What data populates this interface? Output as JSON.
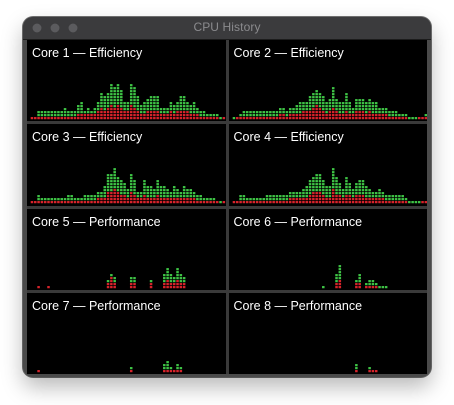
{
  "window": {
    "title": "CPU History",
    "colors": {
      "user": "#3fc646",
      "system": "#d9232b",
      "background": "#000000"
    }
  },
  "cores": [
    {
      "label": "Core 1 — Efficiency",
      "user": [
        0,
        1,
        1,
        3,
        3,
        3,
        3,
        3,
        3,
        3,
        3,
        4,
        3,
        3,
        3,
        5,
        6,
        3,
        4,
        3,
        4,
        6,
        9,
        8,
        9,
        12,
        11,
        12,
        10,
        6,
        6,
        12,
        11,
        8,
        5,
        6,
        7,
        8,
        8,
        8,
        4,
        4,
        4,
        6,
        5,
        6,
        8,
        8,
        6,
        5,
        6,
        4,
        3,
        3,
        2,
        2,
        2,
        2,
        1,
        1
      ],
      "system": [
        0,
        1,
        1,
        1,
        1,
        1,
        1,
        1,
        1,
        1,
        1,
        1,
        1,
        1,
        1,
        2,
        2,
        2,
        2,
        2,
        2,
        3,
        4,
        3,
        4,
        5,
        4,
        5,
        4,
        3,
        3,
        5,
        4,
        3,
        2,
        2,
        3,
        3,
        3,
        3,
        2,
        2,
        2,
        3,
        2,
        3,
        3,
        3,
        3,
        2,
        2,
        2,
        1,
        1,
        1,
        1,
        1,
        1,
        0,
        1
      ]
    },
    {
      "label": "Core 2 — Efficiency",
      "user": [
        0,
        1,
        1,
        2,
        3,
        3,
        3,
        3,
        3,
        3,
        3,
        3,
        3,
        3,
        3,
        4,
        4,
        3,
        4,
        4,
        5,
        6,
        6,
        6,
        8,
        9,
        10,
        9,
        8,
        6,
        7,
        11,
        7,
        6,
        6,
        9,
        6,
        4,
        7,
        7,
        7,
        6,
        7,
        6,
        6,
        4,
        4,
        4,
        3,
        3,
        3,
        2,
        2,
        2,
        1,
        1,
        1,
        1,
        1,
        2
      ],
      "system": [
        0,
        0,
        1,
        1,
        1,
        1,
        1,
        1,
        1,
        1,
        1,
        1,
        1,
        1,
        1,
        2,
        2,
        1,
        2,
        2,
        2,
        2,
        3,
        3,
        3,
        4,
        5,
        4,
        3,
        2,
        3,
        4,
        3,
        2,
        2,
        3,
        2,
        2,
        3,
        3,
        3,
        2,
        3,
        2,
        2,
        2,
        2,
        2,
        1,
        1,
        1,
        1,
        1,
        1,
        0,
        0,
        0,
        1,
        1,
        1
      ]
    },
    {
      "label": "Core 3 — Efficiency",
      "user": [
        0,
        1,
        1,
        3,
        2,
        2,
        2,
        2,
        2,
        2,
        2,
        2,
        3,
        3,
        2,
        2,
        2,
        3,
        3,
        3,
        3,
        4,
        4,
        6,
        10,
        10,
        12,
        9,
        8,
        7,
        5,
        10,
        8,
        4,
        4,
        8,
        6,
        6,
        5,
        8,
        6,
        6,
        5,
        4,
        6,
        5,
        4,
        6,
        5,
        5,
        4,
        3,
        3,
        2,
        2,
        2,
        2,
        1,
        1,
        1
      ],
      "system": [
        0,
        1,
        1,
        1,
        1,
        1,
        1,
        1,
        1,
        1,
        1,
        1,
        1,
        1,
        1,
        1,
        1,
        1,
        1,
        1,
        1,
        2,
        2,
        2,
        4,
        4,
        5,
        4,
        3,
        3,
        2,
        4,
        3,
        2,
        2,
        3,
        2,
        2,
        2,
        3,
        2,
        2,
        2,
        2,
        2,
        2,
        2,
        2,
        2,
        2,
        2,
        1,
        1,
        1,
        1,
        1,
        1,
        1,
        0,
        1
      ]
    },
    {
      "label": "Core 4 — Efficiency",
      "user": [
        0,
        1,
        1,
        3,
        3,
        2,
        2,
        2,
        2,
        2,
        2,
        3,
        3,
        3,
        3,
        3,
        3,
        3,
        4,
        4,
        4,
        4,
        5,
        6,
        8,
        9,
        10,
        10,
        8,
        6,
        6,
        12,
        9,
        7,
        5,
        9,
        7,
        5,
        7,
        8,
        8,
        6,
        5,
        4,
        4,
        5,
        4,
        3,
        3,
        3,
        3,
        3,
        3,
        2,
        1,
        1,
        1,
        1,
        1,
        1
      ],
      "system": [
        0,
        1,
        1,
        1,
        1,
        1,
        1,
        1,
        1,
        1,
        1,
        1,
        1,
        1,
        1,
        1,
        1,
        1,
        2,
        2,
        2,
        2,
        2,
        2,
        3,
        4,
        4,
        4,
        3,
        2,
        2,
        5,
        3,
        3,
        2,
        3,
        3,
        2,
        3,
        3,
        3,
        2,
        2,
        2,
        2,
        2,
        2,
        1,
        1,
        1,
        1,
        1,
        1,
        1,
        0,
        0,
        0,
        0,
        1,
        1
      ]
    },
    {
      "label": "Core 5 — Performance",
      "user": [
        0,
        0,
        0,
        1,
        0,
        0,
        1,
        0,
        0,
        0,
        0,
        0,
        0,
        0,
        0,
        0,
        0,
        0,
        0,
        0,
        0,
        0,
        0,
        0,
        3,
        5,
        4,
        0,
        0,
        0,
        0,
        4,
        4,
        0,
        0,
        0,
        0,
        3,
        0,
        0,
        0,
        5,
        7,
        5,
        4,
        7,
        5,
        4,
        0,
        0,
        0,
        0,
        0,
        0,
        0,
        0,
        0,
        0,
        0,
        0
      ],
      "system": [
        0,
        0,
        0,
        1,
        0,
        0,
        1,
        0,
        0,
        0,
        0,
        0,
        0,
        0,
        0,
        0,
        0,
        0,
        0,
        0,
        0,
        0,
        0,
        0,
        2,
        4,
        2,
        0,
        0,
        0,
        0,
        2,
        2,
        0,
        0,
        0,
        0,
        2,
        0,
        0,
        0,
        2,
        3,
        2,
        2,
        3,
        2,
        2,
        0,
        0,
        0,
        0,
        0,
        0,
        0,
        0,
        0,
        0,
        0,
        0
      ]
    },
    {
      "label": "Core 6 — Performance",
      "user": [
        0,
        0,
        0,
        0,
        0,
        0,
        0,
        0,
        0,
        0,
        0,
        0,
        0,
        0,
        0,
        0,
        0,
        0,
        0,
        0,
        0,
        0,
        0,
        0,
        0,
        0,
        0,
        0,
        1,
        0,
        0,
        0,
        5,
        8,
        0,
        0,
        0,
        0,
        3,
        5,
        0,
        2,
        3,
        3,
        2,
        1,
        1,
        1,
        0,
        0,
        0,
        0,
        0,
        0,
        0,
        0,
        0,
        0,
        0,
        0
      ],
      "system": [
        0,
        0,
        0,
        0,
        0,
        0,
        0,
        0,
        0,
        0,
        0,
        0,
        0,
        0,
        0,
        0,
        0,
        0,
        0,
        0,
        0,
        0,
        0,
        0,
        0,
        0,
        0,
        0,
        0,
        0,
        0,
        0,
        2,
        3,
        0,
        0,
        0,
        0,
        2,
        2,
        0,
        1,
        1,
        1,
        1,
        0,
        0,
        0,
        0,
        0,
        0,
        0,
        0,
        0,
        0,
        0,
        0,
        0,
        0,
        0
      ]
    },
    {
      "label": "Core 7 — Performance",
      "user": [
        0,
        0,
        0,
        1,
        0,
        0,
        0,
        0,
        0,
        0,
        0,
        0,
        0,
        0,
        0,
        0,
        0,
        0,
        0,
        0,
        0,
        0,
        0,
        0,
        0,
        0,
        0,
        0,
        0,
        0,
        0,
        2,
        0,
        0,
        0,
        0,
        0,
        0,
        0,
        0,
        0,
        3,
        4,
        2,
        1,
        3,
        2,
        0,
        0,
        0,
        0,
        0,
        0,
        0,
        0,
        0,
        0,
        0,
        0,
        0
      ],
      "system": [
        0,
        0,
        0,
        1,
        0,
        0,
        0,
        0,
        0,
        0,
        0,
        0,
        0,
        0,
        0,
        0,
        0,
        0,
        0,
        0,
        0,
        0,
        0,
        0,
        0,
        0,
        0,
        0,
        0,
        0,
        0,
        1,
        0,
        0,
        0,
        0,
        0,
        0,
        0,
        0,
        0,
        1,
        1,
        1,
        1,
        1,
        1,
        0,
        0,
        0,
        0,
        0,
        0,
        0,
        0,
        0,
        0,
        0,
        0,
        0
      ]
    },
    {
      "label": "Core 8 — Performance",
      "user": [
        0,
        0,
        0,
        0,
        0,
        0,
        0,
        0,
        0,
        0,
        0,
        0,
        0,
        0,
        0,
        0,
        0,
        0,
        0,
        0,
        0,
        0,
        0,
        0,
        0,
        0,
        0,
        0,
        0,
        0,
        0,
        0,
        0,
        0,
        0,
        0,
        0,
        0,
        3,
        0,
        0,
        0,
        2,
        1,
        1,
        0,
        0,
        0,
        0,
        0,
        0,
        0,
        0,
        0,
        0,
        0,
        0,
        0,
        0,
        0
      ],
      "system": [
        0,
        0,
        0,
        0,
        0,
        0,
        0,
        0,
        0,
        0,
        0,
        0,
        0,
        0,
        0,
        0,
        0,
        0,
        0,
        0,
        0,
        0,
        0,
        0,
        0,
        0,
        0,
        0,
        0,
        0,
        0,
        0,
        0,
        0,
        0,
        0,
        0,
        0,
        1,
        0,
        0,
        0,
        1,
        1,
        1,
        0,
        0,
        0,
        0,
        0,
        0,
        0,
        0,
        0,
        0,
        0,
        0,
        0,
        0,
        0
      ]
    }
  ]
}
